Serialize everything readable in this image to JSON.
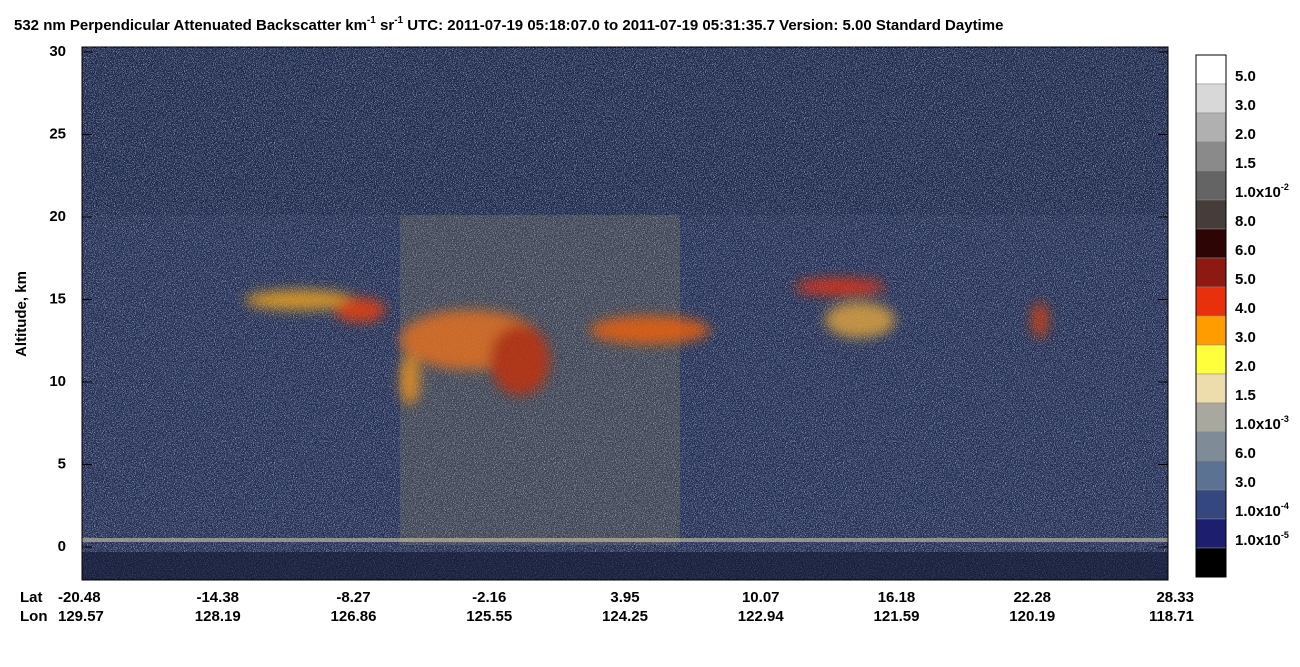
{
  "chart_data": {
    "type": "heatmap",
    "title_parts": [
      {
        "text": "532 nm Perpendicular Attenuated Backscatter km",
        "sup": false
      },
      {
        "text": "-1",
        "sup": true
      },
      {
        "text": " sr",
        "sup": false
      },
      {
        "text": "-1",
        "sup": true
      },
      {
        "text": "  UTC: 2011-07-19 05:18:07.0 to 2011-07-19 05:31:35.7  Version: 5.00 Standard Daytime",
        "sup": false
      }
    ],
    "y_label": "Altitude, km",
    "ylim": [
      -2,
      30.3
    ],
    "yticks": [
      0,
      5,
      10,
      15,
      20,
      25,
      30
    ],
    "x_rows": [
      {
        "name": "Lat",
        "values": [
          -20.48,
          -14.38,
          -8.27,
          -2.16,
          3.95,
          10.07,
          16.18,
          22.28,
          28.33
        ]
      },
      {
        "name": "Lon",
        "values": [
          129.57,
          128.19,
          126.86,
          125.55,
          124.25,
          122.94,
          121.59,
          120.19,
          118.71
        ]
      }
    ],
    "colorbar": {
      "colors": [
        "#ffffff",
        "#d8d8d8",
        "#b0b0b0",
        "#8a8a8a",
        "#646464",
        "#463c3a",
        "#2e0505",
        "#8c1a12",
        "#e8300c",
        "#ff9c00",
        "#ffff3c",
        "#eddcac",
        "#a8a89e",
        "#7f8c98",
        "#5c7292",
        "#35477f",
        "#1e1e6e",
        "#000000"
      ],
      "labels": [
        {
          "text": "5.0"
        },
        {
          "text": "3.0"
        },
        {
          "text": "2.0"
        },
        {
          "text": "1.5"
        },
        {
          "text": "1.0x10",
          "sup": "-2"
        },
        {
          "text": "8.0"
        },
        {
          "text": "6.0"
        },
        {
          "text": "5.0"
        },
        {
          "text": "4.0"
        },
        {
          "text": "3.0"
        },
        {
          "text": "2.0"
        },
        {
          "text": "1.5"
        },
        {
          "text": "1.0x10",
          "sup": "-3"
        },
        {
          "text": "6.0"
        },
        {
          "text": "3.0"
        },
        {
          "text": "1.0x10",
          "sup": "-4"
        },
        {
          "text": "1.0x10",
          "sup": "-5"
        }
      ]
    }
  }
}
